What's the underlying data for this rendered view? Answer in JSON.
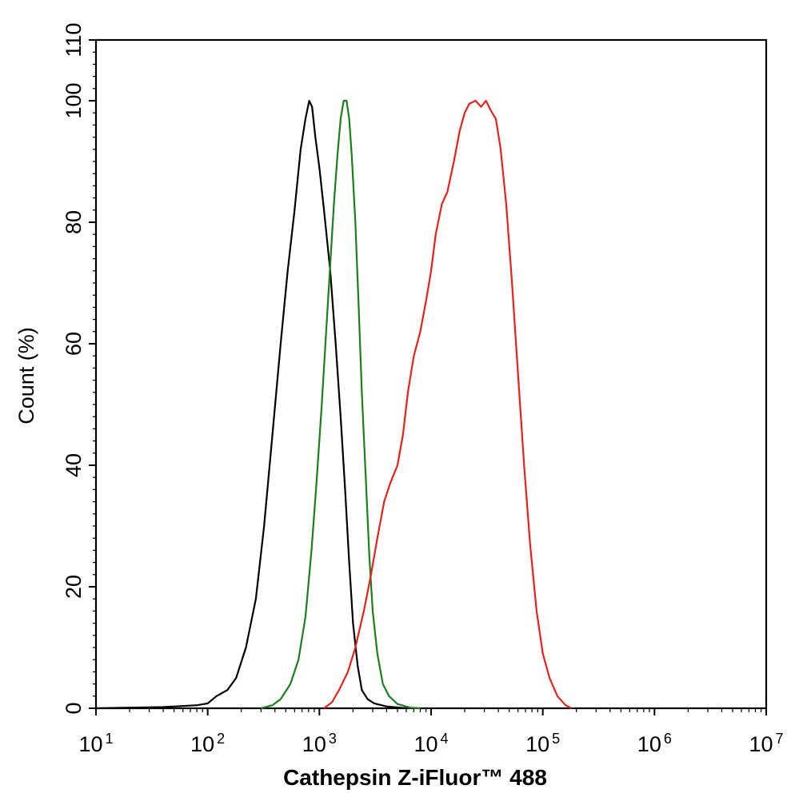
{
  "chart_data": {
    "type": "line",
    "title": "",
    "xlabel": "Cathepsin Z-iFluor™ 488",
    "ylabel": "Count  (%)",
    "xscale": "log10",
    "xlim": [
      10,
      10000000
    ],
    "ylim": [
      0,
      110
    ],
    "grid": false,
    "legend": "none",
    "x_ticks": [
      {
        "base": "10",
        "exp": "1",
        "value": 10
      },
      {
        "base": "10",
        "exp": "2",
        "value": 100
      },
      {
        "base": "10",
        "exp": "3",
        "value": 1000
      },
      {
        "base": "10",
        "exp": "4",
        "value": 10000
      },
      {
        "base": "10",
        "exp": "5",
        "value": 100000
      },
      {
        "base": "10",
        "exp": "6",
        "value": 1000000
      },
      {
        "base": "10",
        "exp": "7",
        "value": 10000000
      }
    ],
    "y_ticks": [
      "0",
      "20",
      "40",
      "60",
      "80",
      "100",
      "110"
    ],
    "series": [
      {
        "color": "#000000",
        "points": [
          [
            10,
            0
          ],
          [
            40,
            0.2
          ],
          [
            80,
            0.5
          ],
          [
            100,
            0.8
          ],
          [
            120,
            2
          ],
          [
            150,
            3
          ],
          [
            180,
            5
          ],
          [
            220,
            10
          ],
          [
            270,
            18
          ],
          [
            320,
            30
          ],
          [
            380,
            45
          ],
          [
            450,
            60
          ],
          [
            520,
            72
          ],
          [
            600,
            82
          ],
          [
            680,
            92
          ],
          [
            750,
            97
          ],
          [
            810,
            100
          ],
          [
            860,
            99
          ],
          [
            920,
            94
          ],
          [
            1000,
            89
          ],
          [
            1100,
            82
          ],
          [
            1250,
            72
          ],
          [
            1400,
            60
          ],
          [
            1550,
            48
          ],
          [
            1700,
            36
          ],
          [
            1850,
            24
          ],
          [
            2000,
            14
          ],
          [
            2200,
            7
          ],
          [
            2400,
            3
          ],
          [
            2700,
            1.5
          ],
          [
            3100,
            0.8
          ],
          [
            4000,
            0.3
          ],
          [
            6000,
            0
          ]
        ]
      },
      {
        "color": "#1e7d1e",
        "points": [
          [
            300,
            0
          ],
          [
            380,
            0.5
          ],
          [
            450,
            1.5
          ],
          [
            550,
            4
          ],
          [
            650,
            8
          ],
          [
            750,
            15
          ],
          [
            850,
            26
          ],
          [
            950,
            38
          ],
          [
            1050,
            50
          ],
          [
            1150,
            62
          ],
          [
            1250,
            73
          ],
          [
            1350,
            83
          ],
          [
            1450,
            91
          ],
          [
            1550,
            97
          ],
          [
            1650,
            100
          ],
          [
            1750,
            100
          ],
          [
            1850,
            97
          ],
          [
            1950,
            91
          ],
          [
            2100,
            80
          ],
          [
            2250,
            66
          ],
          [
            2400,
            52
          ],
          [
            2600,
            38
          ],
          [
            2800,
            25
          ],
          [
            3000,
            16
          ],
          [
            3300,
            9
          ],
          [
            3700,
            4
          ],
          [
            4200,
            2
          ],
          [
            5000,
            0.7
          ],
          [
            6500,
            0.1
          ],
          [
            8000,
            0
          ]
        ]
      },
      {
        "color": "#e8211b",
        "points": [
          [
            1100,
            0
          ],
          [
            1300,
            1
          ],
          [
            1500,
            3
          ],
          [
            1800,
            6
          ],
          [
            2100,
            10
          ],
          [
            2500,
            16
          ],
          [
            2900,
            22
          ],
          [
            3300,
            28
          ],
          [
            3800,
            34
          ],
          [
            4300,
            37
          ],
          [
            5000,
            40
          ],
          [
            5600,
            45
          ],
          [
            6200,
            52
          ],
          [
            7000,
            58
          ],
          [
            8000,
            62
          ],
          [
            9000,
            67
          ],
          [
            10000,
            72
          ],
          [
            11000,
            78
          ],
          [
            12500,
            83
          ],
          [
            14000,
            85
          ],
          [
            16000,
            90
          ],
          [
            18000,
            95
          ],
          [
            20000,
            98
          ],
          [
            22000,
            99.5
          ],
          [
            25000,
            100
          ],
          [
            28000,
            99
          ],
          [
            31000,
            100
          ],
          [
            34000,
            98.5
          ],
          [
            38000,
            97
          ],
          [
            42000,
            92
          ],
          [
            47000,
            83
          ],
          [
            53000,
            70
          ],
          [
            60000,
            55
          ],
          [
            68000,
            40
          ],
          [
            77000,
            27
          ],
          [
            88000,
            16
          ],
          [
            100000,
            9
          ],
          [
            115000,
            5
          ],
          [
            135000,
            2
          ],
          [
            160000,
            0.5
          ],
          [
            180000,
            0
          ]
        ]
      }
    ]
  }
}
